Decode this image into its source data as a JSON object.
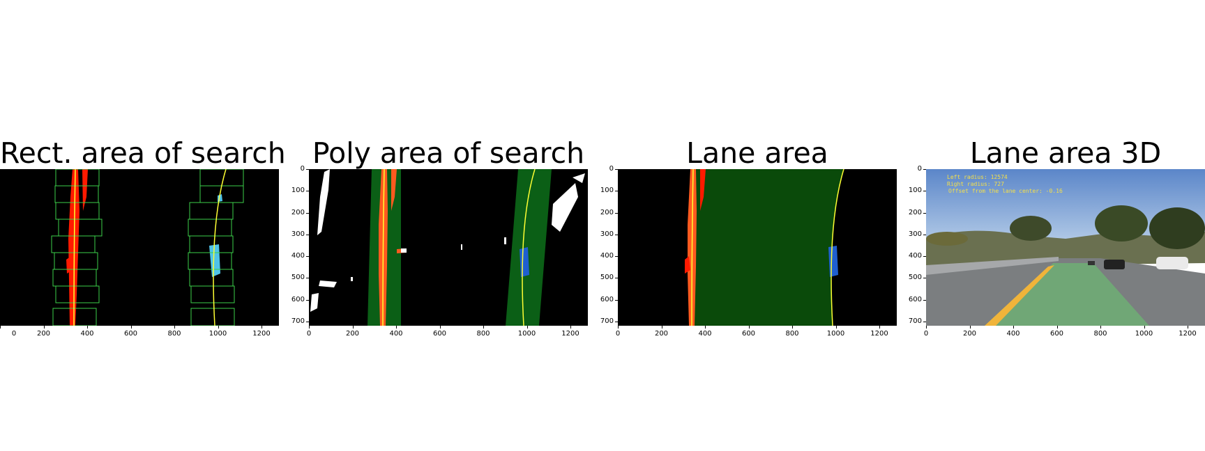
{
  "panels": [
    {
      "title": "Rect. area of search"
    },
    {
      "title": "Poly area of search"
    },
    {
      "title": "Lane area"
    },
    {
      "title": "Lane area 3D"
    }
  ],
  "axes": {
    "x_ticks": [
      "0",
      "200",
      "400",
      "600",
      "800",
      "1000",
      "1200"
    ],
    "y_ticks": [
      "0",
      "100",
      "200",
      "300",
      "400",
      "500",
      "600",
      "700"
    ]
  },
  "overlay": {
    "left_radius": "Left radius: 12574",
    "right_radius": "Right radius: 727",
    "offset": "Offset from the lane center: -0.16"
  },
  "colors": {
    "left_lane_pixels": "#ff1a00",
    "right_lane_pixels": "#4fc3e8",
    "poly_band": "#0b5f16",
    "fit_line": "#ffff33",
    "lane_fill": "#0a4a0a",
    "window_box": "#3bd14a"
  }
}
